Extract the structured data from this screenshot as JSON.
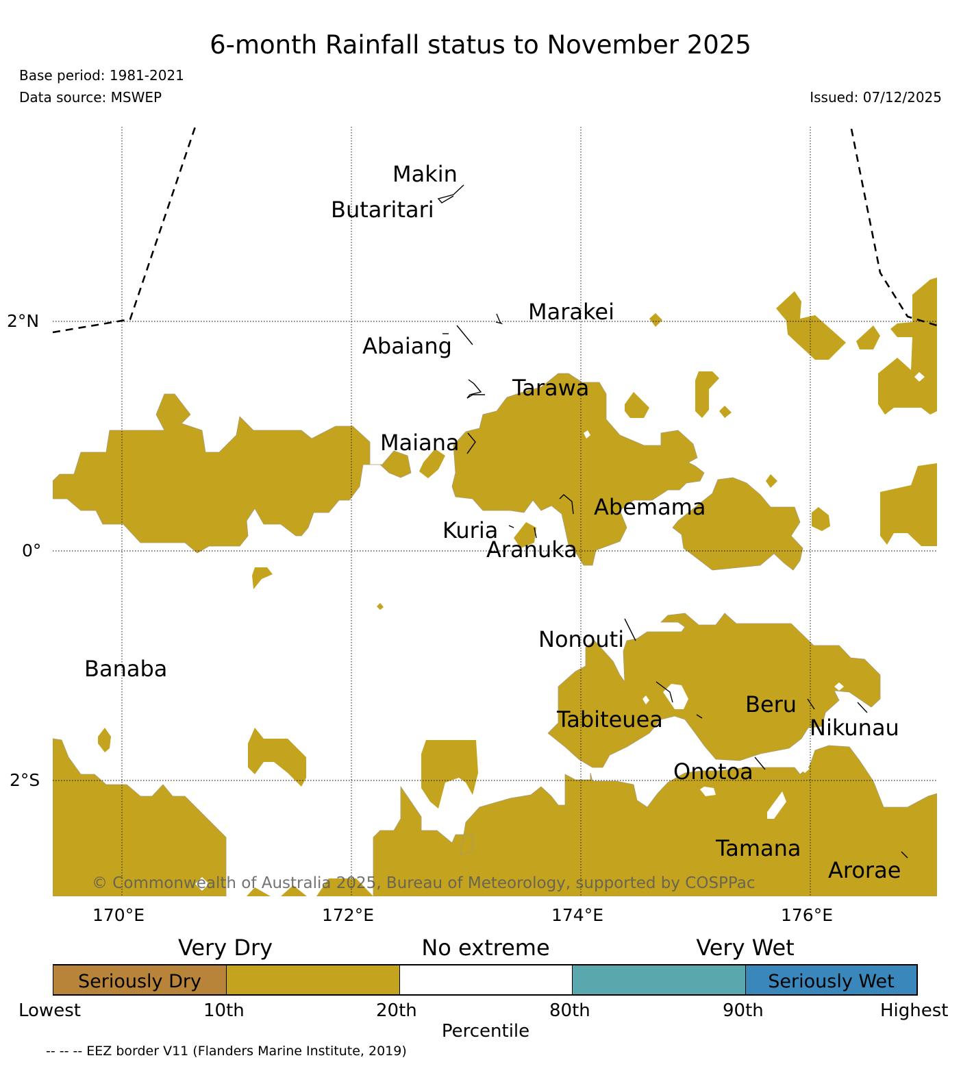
{
  "header": {
    "title": "6-month Rainfall status to November 2025",
    "base_period": "Base period: 1981-2021",
    "data_source": "Data source: MSWEP",
    "issued": "Issued: 07/12/2025"
  },
  "map": {
    "lon_labels": [
      "170°E",
      "172°E",
      "174°E",
      "176°E"
    ],
    "lat_labels": [
      "2°N",
      "0°",
      "2°S"
    ],
    "islands": [
      {
        "id": "makin",
        "name": "Makin"
      },
      {
        "id": "butaritari",
        "name": "Butaritari"
      },
      {
        "id": "marakei",
        "name": "Marakei"
      },
      {
        "id": "abaiang",
        "name": "Abaiang"
      },
      {
        "id": "tarawa",
        "name": "Tarawa"
      },
      {
        "id": "maiana",
        "name": "Maiana"
      },
      {
        "id": "abemama",
        "name": "Abemama"
      },
      {
        "id": "kuria",
        "name": "Kuria"
      },
      {
        "id": "aranuka",
        "name": "Aranuka"
      },
      {
        "id": "nonouti",
        "name": "Nonouti"
      },
      {
        "id": "banaba",
        "name": "Banaba"
      },
      {
        "id": "beru",
        "name": "Beru"
      },
      {
        "id": "tabiteuea",
        "name": "Tabiteuea"
      },
      {
        "id": "nikunau",
        "name": "Nikunau"
      },
      {
        "id": "onotoa",
        "name": "Onotoa"
      },
      {
        "id": "tamana",
        "name": "Tamana"
      },
      {
        "id": "arorae",
        "name": "Arorae"
      }
    ],
    "copyright": "© Commonwealth of Australia 2025, Bureau of Meteorology, supported by COSPPac",
    "colors": {
      "very_dry": "#c4a31f",
      "no_extreme": "#ffffff",
      "eez_border": "#000000"
    }
  },
  "colorbar": {
    "group_labels": [
      "Very Dry",
      "No extreme",
      "Very Wet"
    ],
    "segments": [
      {
        "label": "Seriously Dry",
        "color": "#b8843a"
      },
      {
        "label": "",
        "color": "#c4a31f"
      },
      {
        "label": "",
        "color": "#ffffff"
      },
      {
        "label": "",
        "color": "#5aa8ad"
      },
      {
        "label": "Seriously Wet",
        "color": "#3a88bb"
      }
    ],
    "ticks": [
      "Lowest",
      "10th",
      "20th",
      "80th",
      "90th",
      "Highest"
    ],
    "axis_label": "Percentile"
  },
  "footer": {
    "eez_note": "-- -- -- EEZ border V11 (Flanders Marine Institute, 2019)"
  }
}
